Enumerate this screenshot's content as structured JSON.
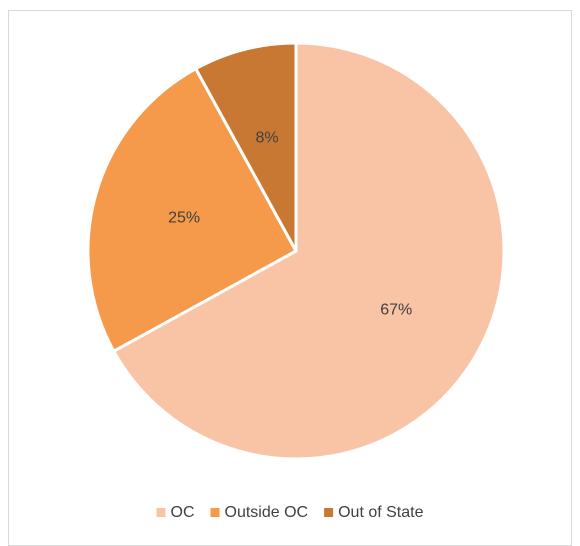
{
  "chart_data": {
    "type": "pie",
    "categories": [
      "OC",
      "Outside OC",
      "Out of State"
    ],
    "values": [
      67,
      25,
      8
    ],
    "value_labels": [
      "67%",
      "25%",
      "8%"
    ],
    "colors": [
      "#f9c3a6",
      "#f59a4a",
      "#c97834"
    ],
    "legend": "bottom"
  }
}
